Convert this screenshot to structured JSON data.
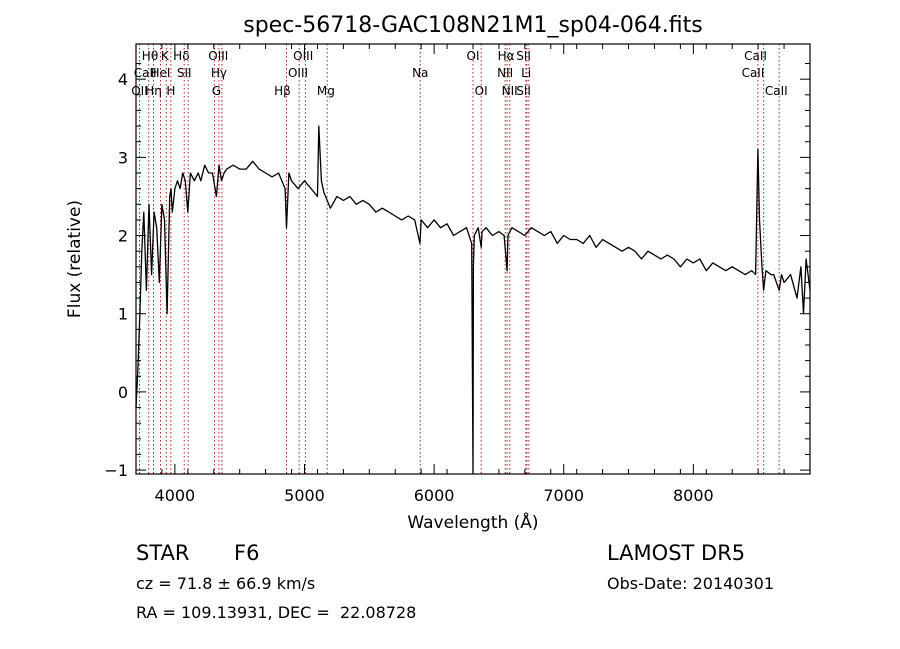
{
  "chart_data": {
    "type": "line",
    "title": "spec-56718-GAC108N21M1_sp04-064.fits",
    "xlabel": "Wavelength (Å)",
    "ylabel": "Flux (relative)",
    "xlim": [
      3700,
      8900
    ],
    "ylim": [
      -1.05,
      4.45
    ],
    "xticks": [
      4000,
      5000,
      6000,
      7000,
      8000
    ],
    "yticks": [
      -1,
      0,
      1,
      2,
      3,
      4
    ],
    "grid": false,
    "line_color": "#000000",
    "marker_color": "#b22222",
    "series": [
      {
        "x": [
          3700,
          3715,
          3730,
          3745,
          3760,
          3780,
          3800,
          3820,
          3840,
          3860,
          3880,
          3900,
          3920,
          3940,
          3960,
          3970,
          3980,
          4000,
          4020,
          4040,
          4060,
          4080,
          4100,
          4120,
          4150,
          4180,
          4200,
          4230,
          4260,
          4290,
          4320,
          4340,
          4360,
          4380,
          4400,
          4450,
          4500,
          4550,
          4600,
          4650,
          4700,
          4750,
          4800,
          4850,
          4861,
          4880,
          4900,
          4950,
          5000,
          5050,
          5100,
          5110,
          5130,
          5150,
          5200,
          5250,
          5300,
          5350,
          5400,
          5450,
          5500,
          5550,
          5600,
          5650,
          5700,
          5750,
          5800,
          5850,
          5890,
          5900,
          5950,
          6000,
          6050,
          6100,
          6150,
          6200,
          6250,
          6290,
          6300,
          6303,
          6310,
          6340,
          6363,
          6370,
          6400,
          6450,
          6500,
          6540,
          6563,
          6570,
          6600,
          6650,
          6700,
          6750,
          6800,
          6850,
          6900,
          6950,
          7000,
          7050,
          7100,
          7150,
          7200,
          7250,
          7300,
          7350,
          7400,
          7450,
          7500,
          7550,
          7600,
          7650,
          7700,
          7750,
          7800,
          7850,
          7900,
          7950,
          8000,
          8050,
          8100,
          8150,
          8200,
          8250,
          8300,
          8350,
          8400,
          8450,
          8480,
          8498,
          8510,
          8530,
          8542,
          8560,
          8600,
          8620,
          8662,
          8680,
          8700,
          8750,
          8800,
          8830,
          8850,
          8870,
          8900
        ],
        "y": [
          -0.2,
          0.3,
          1.0,
          1.8,
          2.3,
          1.3,
          2.4,
          1.5,
          2.3,
          2.1,
          1.4,
          2.4,
          2.2,
          1.0,
          2.5,
          2.6,
          2.3,
          2.6,
          2.7,
          2.6,
          2.8,
          2.7,
          2.3,
          2.8,
          2.7,
          2.8,
          2.7,
          2.9,
          2.8,
          2.8,
          2.5,
          2.9,
          2.7,
          2.8,
          2.85,
          2.9,
          2.85,
          2.85,
          2.95,
          2.85,
          2.8,
          2.75,
          2.8,
          2.6,
          2.1,
          2.8,
          2.7,
          2.6,
          2.7,
          2.6,
          2.5,
          3.4,
          2.7,
          2.55,
          2.35,
          2.5,
          2.45,
          2.5,
          2.4,
          2.45,
          2.4,
          2.3,
          2.35,
          2.3,
          2.25,
          2.2,
          2.25,
          2.2,
          1.9,
          2.2,
          2.1,
          2.2,
          2.1,
          2.15,
          2.0,
          2.05,
          2.1,
          1.9,
          -1.05,
          1.6,
          2.0,
          2.1,
          1.85,
          2.05,
          2.1,
          2.0,
          2.05,
          2.0,
          1.55,
          2.0,
          2.1,
          2.05,
          2.0,
          2.1,
          2.05,
          2.0,
          2.05,
          1.9,
          2.0,
          1.95,
          1.95,
          1.9,
          2.0,
          1.85,
          1.95,
          1.9,
          1.85,
          1.8,
          1.85,
          1.8,
          1.7,
          1.8,
          1.75,
          1.7,
          1.75,
          1.7,
          1.6,
          1.7,
          1.65,
          1.7,
          1.55,
          1.65,
          1.6,
          1.55,
          1.6,
          1.55,
          1.5,
          1.55,
          1.5,
          3.1,
          2.2,
          1.6,
          1.3,
          1.55,
          1.5,
          1.5,
          1.3,
          1.5,
          1.4,
          1.5,
          1.2,
          1.6,
          1.0,
          1.7,
          1.3
        ]
      }
    ],
    "annotations": [
      {
        "label": "Hθ",
        "x": 3798,
        "row": 0,
        "label_x": 3808
      },
      {
        "label": "CaII",
        "x": 3934,
        "row": 1,
        "label_x": 3771
      },
      {
        "label": "OII",
        "x": 3727,
        "row": 2,
        "label_x": 3727
      },
      {
        "label": "Hη",
        "x": 3835,
        "row": 2,
        "label_x": 3835
      },
      {
        "label": "K",
        "x": 3934,
        "row": 0,
        "label_x": 3922
      },
      {
        "label": "HeI",
        "x": 3889,
        "row": 1,
        "label_x": 3889
      },
      {
        "label": "H",
        "x": 3969,
        "row": 2,
        "label_x": 3969
      },
      {
        "label": "Hδ",
        "x": 4102,
        "row": 0,
        "label_x": 4050
      },
      {
        "label": "SII",
        "x": 4072,
        "row": 1,
        "label_x": 4072
      },
      {
        "label": "OIII",
        "x": 4363,
        "row": 0,
        "label_x": 4335
      },
      {
        "label": "Hγ",
        "x": 4340,
        "row": 1,
        "label_x": 4340
      },
      {
        "label": "G",
        "x": 4305,
        "row": 2,
        "label_x": 4320
      },
      {
        "label": "OIII",
        "x": 5007,
        "row": 0,
        "label_x": 4990
      },
      {
        "label": "OIII",
        "x": 4959,
        "row": 1,
        "label_x": 4950
      },
      {
        "label": "Hβ",
        "x": 4861,
        "row": 2,
        "label_x": 4830
      },
      {
        "label": "Mg",
        "x": 5175,
        "row": 2,
        "label_x": 5165
      },
      {
        "label": "Na",
        "x": 5893,
        "row": 1,
        "label_x": 5893
      },
      {
        "label": "OI",
        "x": 6300,
        "row": 0,
        "label_x": 6300
      },
      {
        "label": "OI",
        "x": 6363,
        "row": 2,
        "label_x": 6363
      },
      {
        "label": "Hα",
        "x": 6563,
        "row": 0,
        "label_x": 6555
      },
      {
        "label": "NII",
        "x": 6548,
        "row": 1,
        "label_x": 6548
      },
      {
        "label": "NII",
        "x": 6583,
        "row": 2,
        "label_x": 6583
      },
      {
        "label": "SII",
        "x": 6716,
        "row": 0,
        "label_x": 6690
      },
      {
        "label": "Li",
        "x": 6708,
        "row": 1,
        "label_x": 6710
      },
      {
        "label": "SII",
        "x": 6731,
        "row": 2,
        "label_x": 6690
      },
      {
        "label": "CaII",
        "x": 8542,
        "row": 0,
        "label_x": 8480
      },
      {
        "label": "CaII",
        "x": 8498,
        "row": 1,
        "label_x": 8460
      },
      {
        "label": "CaII",
        "x": 8662,
        "row": 2,
        "label_x": 8640
      }
    ],
    "marker_lines": [
      3727,
      3798,
      3835,
      3889,
      3934,
      3969,
      4072,
      4102,
      4305,
      4340,
      4363,
      4861,
      4959,
      5007,
      5175,
      5893,
      6300,
      6363,
      6548,
      6563,
      6583,
      6708,
      6716,
      6731,
      8498,
      8542,
      8662
    ]
  },
  "info": {
    "object_class": "STAR",
    "subclass": "F6",
    "redshift_line": "cz = 71.8 ± 66.9 km/s",
    "coords_line": "RA = 109.13931, DEC =  22.08728",
    "survey": "LAMOST DR5",
    "obs_date": "Obs-Date: 20140301"
  }
}
